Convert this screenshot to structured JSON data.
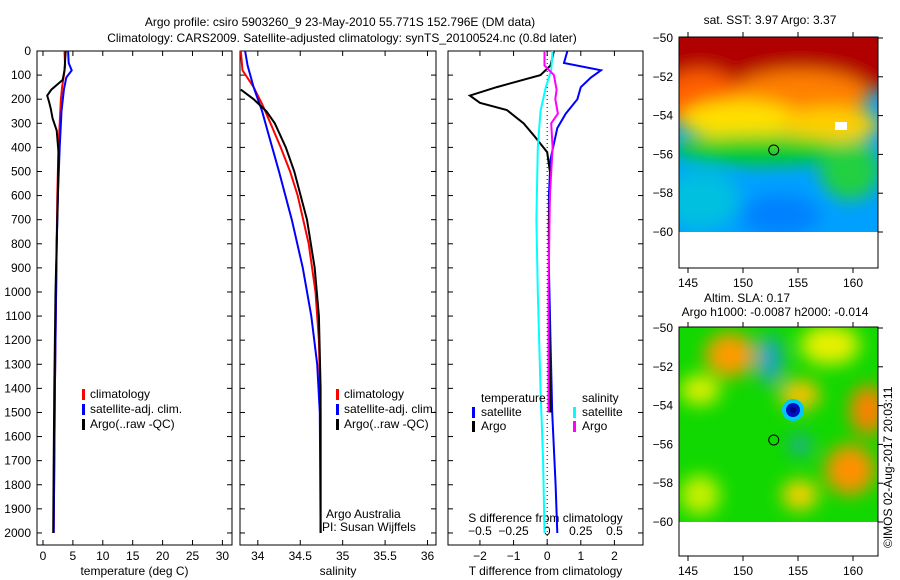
{
  "title_line1": "Argo profile: csiro 5903260_9 23-May-2010 55.771S 152.796E (DM data)",
  "title_line2": "Climatology: CARS2009. Satellite-adjusted climatology: synTS_20100524.nc (0.8d later)",
  "credit": "Argo Australia",
  "pi": "PI: Susan Wijffels",
  "copyright": "©IMOS 02-Aug-2017 20:03:11",
  "colors": {
    "climatology": "#ff0000",
    "satellite": "#0000ff",
    "argo": "#000000",
    "sal_sat": "#00ffff",
    "sal_argo": "#ff00ff"
  },
  "chart_data": [
    {
      "type": "line",
      "xlabel": "temperature (deg C)",
      "ylabel": "depth",
      "xlim": [
        -1,
        31.6
      ],
      "ylim": [
        2050,
        0
      ],
      "xticks": [
        0,
        5,
        10,
        15,
        20,
        25,
        30
      ],
      "yticks": [
        0,
        100,
        200,
        300,
        400,
        500,
        600,
        700,
        800,
        900,
        1000,
        1100,
        1200,
        1300,
        1400,
        1500,
        1600,
        1700,
        1800,
        1900,
        2000
      ],
      "legend": [
        "climatology",
        "satellite-adj. clim.",
        "Argo(..raw -QC)"
      ],
      "series": [
        {
          "name": "climatology",
          "color": "#ff0000",
          "points": [
            [
              0,
              3.6
            ],
            [
              60,
              3.7
            ],
            [
              100,
              3.5
            ],
            [
              150,
              3.2
            ],
            [
              200,
              3.0
            ],
            [
              300,
              2.8
            ],
            [
              400,
              2.6
            ],
            [
              600,
              2.4
            ],
            [
              800,
              2.3
            ],
            [
              1000,
              2.2
            ],
            [
              1400,
              2.0
            ],
            [
              1700,
              1.9
            ],
            [
              2000,
              1.8
            ]
          ]
        },
        {
          "name": "satellite-adj. clim.",
          "color": "#0000ff",
          "points": [
            [
              0,
              4.2
            ],
            [
              50,
              4.3
            ],
            [
              80,
              4.8
            ],
            [
              110,
              3.9
            ],
            [
              160,
              3.5
            ],
            [
              250,
              3.1
            ],
            [
              400,
              2.8
            ],
            [
              600,
              2.5
            ],
            [
              800,
              2.3
            ],
            [
              1000,
              2.2
            ],
            [
              1400,
              2.0
            ],
            [
              1700,
              1.9
            ],
            [
              2000,
              1.8
            ]
          ]
        },
        {
          "name": "Argo(..raw -QC)",
          "color": "#000000",
          "points": [
            [
              0,
              3.8
            ],
            [
              80,
              3.6
            ],
            [
              120,
              3.3
            ],
            [
              160,
              1.4
            ],
            [
              185,
              0.7
            ],
            [
              210,
              1.0
            ],
            [
              240,
              1.3
            ],
            [
              280,
              1.6
            ],
            [
              330,
              2.3
            ],
            [
              420,
              2.6
            ],
            [
              600,
              2.5
            ],
            [
              800,
              2.3
            ],
            [
              1000,
              2.1
            ],
            [
              1400,
              1.9
            ],
            [
              1700,
              1.8
            ],
            [
              2000,
              1.7
            ]
          ]
        }
      ]
    },
    {
      "type": "line",
      "xlabel": "salinity",
      "ylabel": "depth",
      "xlim": [
        33.79,
        36.1
      ],
      "ylim": [
        2050,
        0
      ],
      "xticks": [
        34,
        34.5,
        35,
        35.5,
        36
      ],
      "legend": [
        "climatology",
        "satellite-adj. clim.",
        "Argo(..raw -QC)"
      ],
      "series": [
        {
          "name": "climatology",
          "color": "#ff0000",
          "points": [
            [
              0,
              33.8
            ],
            [
              80,
              33.82
            ],
            [
              150,
              33.95
            ],
            [
              220,
              34.05
            ],
            [
              300,
              34.15
            ],
            [
              400,
              34.27
            ],
            [
              500,
              34.38
            ],
            [
              600,
              34.47
            ],
            [
              800,
              34.6
            ],
            [
              1000,
              34.68
            ],
            [
              1200,
              34.72
            ],
            [
              1500,
              34.74
            ],
            [
              2000,
              34.74
            ]
          ]
        },
        {
          "name": "satellite-adj. clim.",
          "color": "#0000ff",
          "points": [
            [
              0,
              33.85
            ],
            [
              60,
              33.88
            ],
            [
              150,
              33.95
            ],
            [
              250,
              34.05
            ],
            [
              350,
              34.13
            ],
            [
              500,
              34.25
            ],
            [
              700,
              34.4
            ],
            [
              900,
              34.53
            ],
            [
              1100,
              34.63
            ],
            [
              1300,
              34.7
            ],
            [
              1500,
              34.73
            ],
            [
              2000,
              34.74
            ]
          ]
        },
        {
          "name": "Argo(..raw -QC)",
          "color": "#000000",
          "points": [
            [
              160,
              33.8
            ],
            [
              200,
              33.95
            ],
            [
              250,
              34.1
            ],
            [
              300,
              34.2
            ],
            [
              400,
              34.33
            ],
            [
              500,
              34.43
            ],
            [
              700,
              34.58
            ],
            [
              900,
              34.67
            ],
            [
              1100,
              34.72
            ],
            [
              1400,
              34.74
            ],
            [
              2000,
              34.74
            ]
          ]
        }
      ]
    },
    {
      "type": "line",
      "xlabel": "T difference from climatology",
      "x2label": "S difference from climatology",
      "xlim": [
        -2.95,
        2.85
      ],
      "ylim": [
        2050,
        0
      ],
      "xticks": [
        -2,
        -1,
        0,
        1,
        2
      ],
      "x2ticks": [
        -0.5,
        -0.25,
        0,
        0.25,
        0.5
      ],
      "legend": {
        "temperature": "temperature",
        "salinity": "salinity",
        "items": [
          "satellite",
          "Argo",
          "satellite",
          "Argo"
        ]
      },
      "series": [
        {
          "name": "T satellite",
          "color": "#0000ff",
          "units": "T",
          "points": [
            [
              0,
              0.6
            ],
            [
              50,
              0.5
            ],
            [
              80,
              1.6
            ],
            [
              110,
              1.3
            ],
            [
              150,
              1.0
            ],
            [
              200,
              0.9
            ],
            [
              260,
              0.55
            ],
            [
              320,
              0.3
            ],
            [
              450,
              0.1
            ],
            [
              600,
              0.05
            ],
            [
              900,
              0.05
            ],
            [
              1200,
              0.1
            ],
            [
              1500,
              0.15
            ],
            [
              1800,
              0.25
            ],
            [
              2000,
              0.3
            ]
          ]
        },
        {
          "name": "T Argo",
          "color": "#000000",
          "units": "T",
          "points": [
            [
              0,
              0.2
            ],
            [
              60,
              0.1
            ],
            [
              100,
              -0.2
            ],
            [
              150,
              -1.5
            ],
            [
              185,
              -2.3
            ],
            [
              215,
              -2.0
            ],
            [
              245,
              -1.2
            ],
            [
              300,
              -0.7
            ],
            [
              350,
              -0.4
            ],
            [
              420,
              0
            ],
            [
              520,
              0.1
            ],
            [
              700,
              0.05
            ],
            [
              1000,
              0.05
            ],
            [
              1500,
              0.1
            ]
          ]
        },
        {
          "name": "S satellite",
          "color": "#00ffff",
          "units": "S",
          "points": [
            [
              0,
              0.04
            ],
            [
              80,
              0.03
            ],
            [
              150,
              -0.01
            ],
            [
              250,
              -0.05
            ],
            [
              400,
              -0.07
            ],
            [
              700,
              -0.08
            ],
            [
              1000,
              -0.07
            ],
            [
              1400,
              -0.05
            ],
            [
              1700,
              -0.03
            ],
            [
              2000,
              -0.02
            ]
          ]
        },
        {
          "name": "S Argo",
          "color": "#ff00ff",
          "units": "S",
          "points": [
            [
              0,
              -0.02
            ],
            [
              60,
              -0.02
            ],
            [
              100,
              0.05
            ],
            [
              160,
              0.07
            ],
            [
              200,
              0.06
            ],
            [
              260,
              0.08
            ],
            [
              300,
              0.03
            ],
            [
              400,
              0.04
            ],
            [
              600,
              0.02
            ],
            [
              1000,
              0.01
            ],
            [
              1500,
              0.01
            ]
          ]
        }
      ]
    }
  ],
  "maps": [
    {
      "title": "sat. SST: 3.97 Argo: 3.37",
      "lon_ticks": [
        145,
        150,
        155,
        160
      ],
      "lat_ticks": [
        -50,
        -52,
        -54,
        -56,
        -58,
        -60
      ],
      "lon_range": [
        144,
        162
      ],
      "lat_range": [
        -50,
        -61.8
      ],
      "argo_lon": 152.796,
      "argo_lat": -55.771
    },
    {
      "title1": "Altim. SLA: 0.17",
      "title2": "Argo h1000: -0.0087 h2000: -0.014",
      "lon_ticks": [
        145,
        150,
        155,
        160
      ],
      "lat_ticks": [
        -50,
        -52,
        -54,
        -56,
        -58,
        -60
      ],
      "lon_range": [
        144,
        162
      ],
      "lat_range": [
        -50,
        -61.8
      ],
      "argo_lon": 152.796,
      "argo_lat": -55.771
    }
  ]
}
